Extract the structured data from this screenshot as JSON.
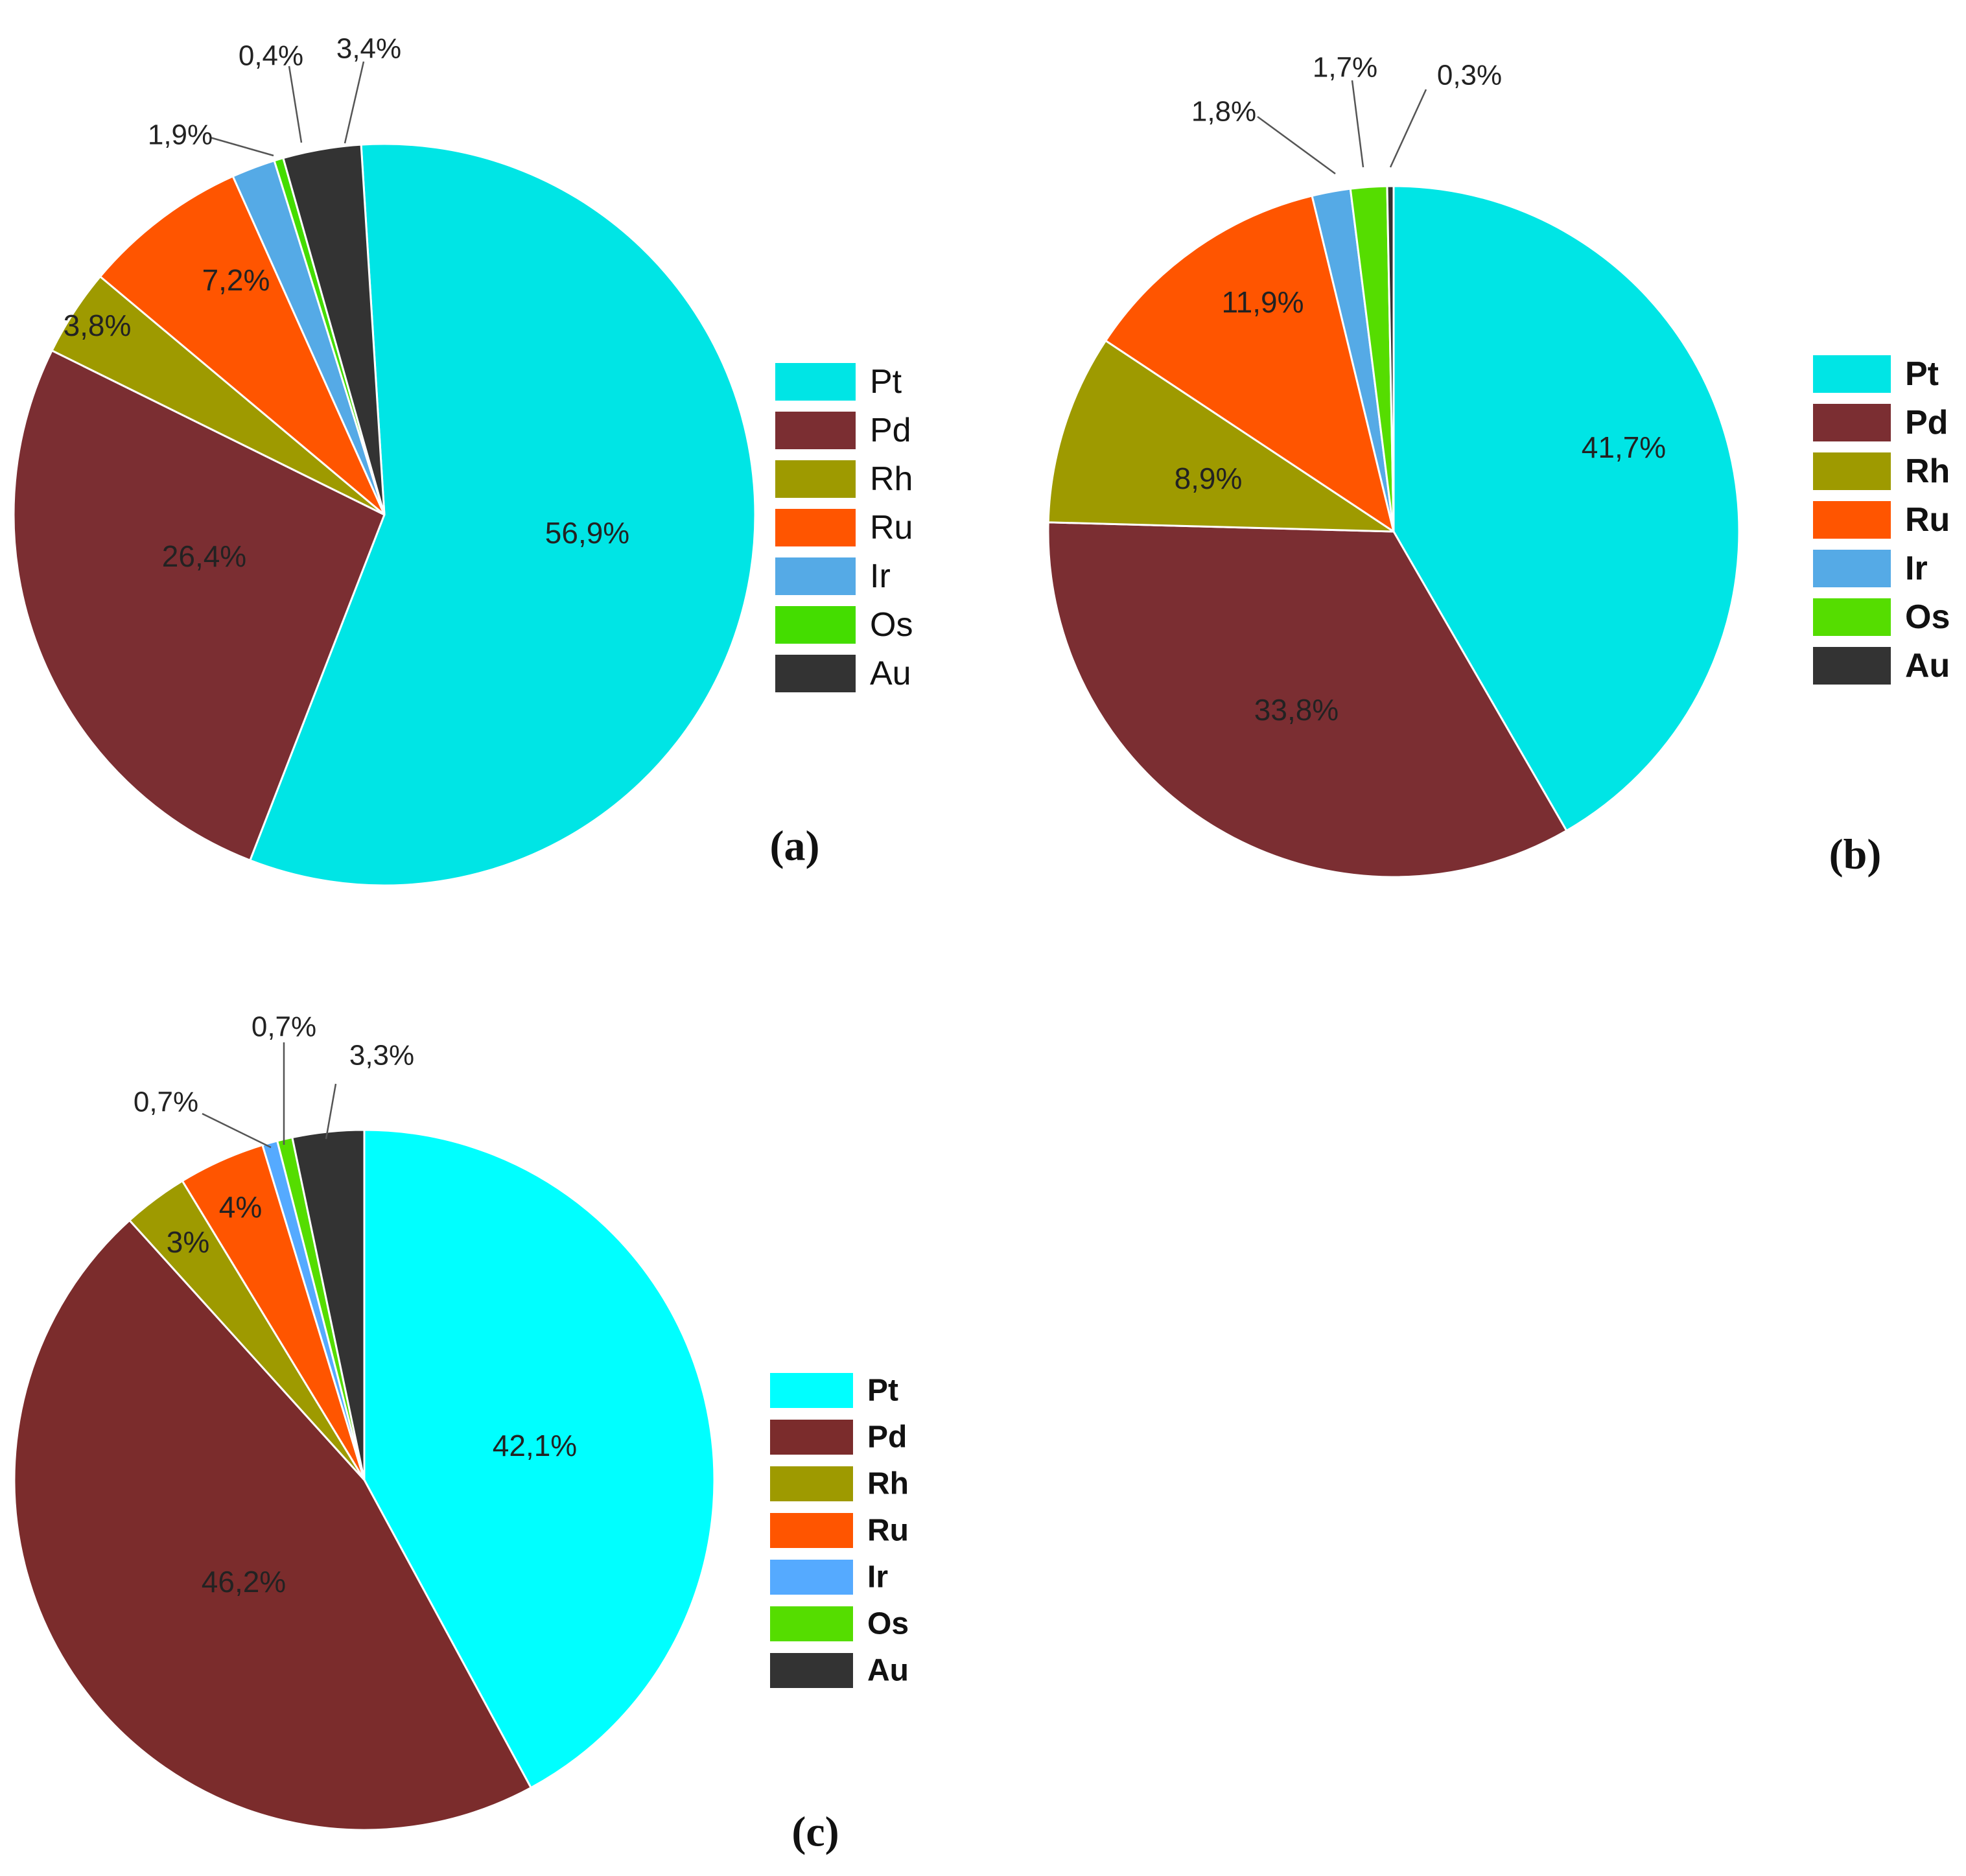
{
  "chart_data": [
    {
      "type": "pie",
      "panel_label": "(a)",
      "categories": [
        "Pt",
        "Pd",
        "Rh",
        "Ru",
        "Ir",
        "Os",
        "Au"
      ],
      "values": [
        56.9,
        26.4,
        3.8,
        7.2,
        1.9,
        0.4,
        3.4
      ],
      "value_labels": [
        "56,9%",
        "26,4%",
        "3,8%",
        "7,2%",
        "1,9%",
        "0,4%",
        "3,4%"
      ],
      "colors": [
        "#00E5E5",
        "#7B2E32",
        "#9E9A00",
        "#FF5500",
        "#55AAE6",
        "#44DD00",
        "#333333"
      ],
      "legend": {
        "position": "right",
        "entries": [
          "Pt",
          "Pd",
          "Rh",
          "Ru",
          "Ir",
          "Os",
          "Au"
        ],
        "bold": false
      }
    },
    {
      "type": "pie",
      "panel_label": "(b)",
      "categories": [
        "Pt",
        "Pd",
        "Rh",
        "Ru",
        "Ir",
        "Os",
        "Au"
      ],
      "values": [
        41.7,
        33.8,
        8.9,
        11.9,
        1.8,
        1.7,
        0.3
      ],
      "value_labels": [
        "41,7%",
        "33,8%",
        "8,9%",
        "11,9%",
        "1,8%",
        "1,7%",
        "0,3%"
      ],
      "colors": [
        "#00E5E5",
        "#7B2E32",
        "#9E9A00",
        "#FF5500",
        "#55AAE6",
        "#55DD00",
        "#333333"
      ],
      "legend": {
        "position": "right",
        "entries": [
          "Pt",
          "Pd",
          "Rh",
          "Ru",
          "Ir",
          "Os",
          "Au"
        ],
        "bold": true
      }
    },
    {
      "type": "pie",
      "panel_label": "(c)",
      "categories": [
        "Pt",
        "Pd",
        "Rh",
        "Ru",
        "Ir",
        "Os",
        "Au"
      ],
      "values": [
        42.1,
        46.2,
        3,
        4,
        0.7,
        0.7,
        3.3
      ],
      "value_labels": [
        "42,1%",
        "46,2%",
        "3%",
        "4%",
        "0,7%",
        "0,7%",
        "3,3%"
      ],
      "colors": [
        "#00FFFF",
        "#7B2C2C",
        "#9E9A00",
        "#FF5500",
        "#55AAFF",
        "#55DD00",
        "#333333"
      ],
      "legend": {
        "position": "right",
        "entries": [
          "Pt",
          "Pd",
          "Rh",
          "Ru",
          "Ir",
          "Os",
          "Au"
        ],
        "bold": true
      }
    }
  ]
}
